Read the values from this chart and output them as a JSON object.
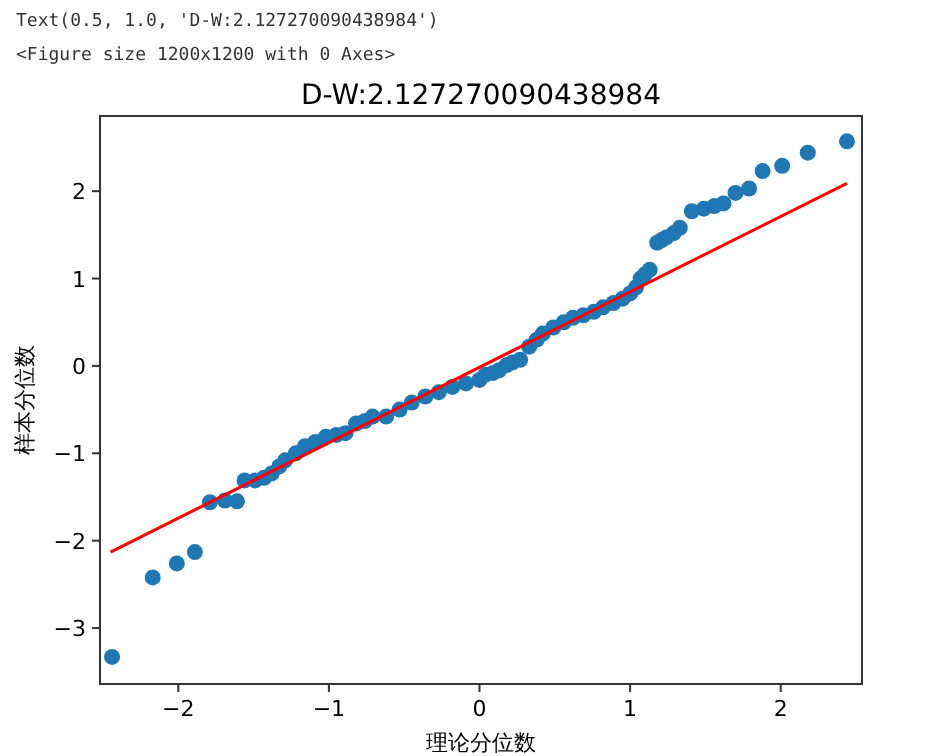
{
  "chart_data": {
    "type": "scatter",
    "title": "D-W:2.127270090438984",
    "xlabel": "理论分位数",
    "ylabel": "样本分位数",
    "annotations": [
      "Text(0.5, 1.0, 'D-W:2.127270090438984')",
      "<Figure size 1200x1200 with 0 Axes>"
    ],
    "xlim": [
      -2.52,
      2.54
    ],
    "ylim": [
      -3.64,
      2.86
    ],
    "xticks": [
      {
        "value": -2,
        "label": "−2"
      },
      {
        "value": -1,
        "label": "−1"
      },
      0,
      1,
      2
    ],
    "yticks": [
      {
        "value": -3,
        "label": "−3"
      },
      {
        "value": -2,
        "label": "−2"
      },
      {
        "value": -1,
        "label": "−1"
      },
      0,
      1,
      2
    ],
    "grid": false,
    "series": [
      {
        "color": "#1f77b4",
        "marker": "circle",
        "x": [
          -2.44,
          -2.17,
          -2.01,
          -1.89,
          -1.79,
          -1.69,
          -1.61,
          -1.56,
          -1.49,
          -1.43,
          -1.38,
          -1.33,
          -1.29,
          -1.22,
          -1.16,
          -1.09,
          -1.02,
          -0.95,
          -0.89,
          -0.82,
          -0.76,
          -0.71,
          -0.62,
          -0.53,
          -0.45,
          -0.36,
          -0.27,
          -0.18,
          -0.09,
          0,
          0.04,
          0.09,
          0.13,
          0.18,
          0.22,
          0.27,
          0.33,
          0.38,
          0.42,
          0.49,
          0.56,
          0.62,
          0.69,
          0.76,
          0.82,
          0.89,
          0.95,
          1.0,
          1.04,
          1.07,
          1.1,
          1.13,
          1.18,
          1.21,
          1.24,
          1.29,
          1.33,
          1.41,
          1.49,
          1.56,
          1.62,
          1.7,
          1.79,
          1.88,
          2.01,
          2.18,
          2.44
        ],
        "values": [
          -3.33,
          -2.42,
          -2.26,
          -2.13,
          -1.56,
          -1.54,
          -1.55,
          -1.31,
          -1.31,
          -1.28,
          -1.23,
          -1.15,
          -1.08,
          -1.0,
          -0.92,
          -0.87,
          -0.81,
          -0.79,
          -0.77,
          -0.66,
          -0.63,
          -0.58,
          -0.58,
          -0.5,
          -0.42,
          -0.35,
          -0.3,
          -0.24,
          -0.2,
          -0.16,
          -0.1,
          -0.08,
          -0.05,
          0.01,
          0.04,
          0.07,
          0.22,
          0.3,
          0.37,
          0.44,
          0.5,
          0.55,
          0.58,
          0.62,
          0.67,
          0.72,
          0.77,
          0.83,
          0.9,
          1.0,
          1.05,
          1.1,
          1.41,
          1.44,
          1.47,
          1.52,
          1.58,
          1.77,
          1.8,
          1.83,
          1.86,
          1.98,
          2.03,
          2.23,
          2.29,
          2.44,
          2.57
        ]
      },
      {
        "type": "line",
        "color": "#ff0000",
        "x": [
          -2.45,
          2.44
        ],
        "values": [
          -2.13,
          2.09
        ],
        "marker": "none"
      }
    ]
  }
}
